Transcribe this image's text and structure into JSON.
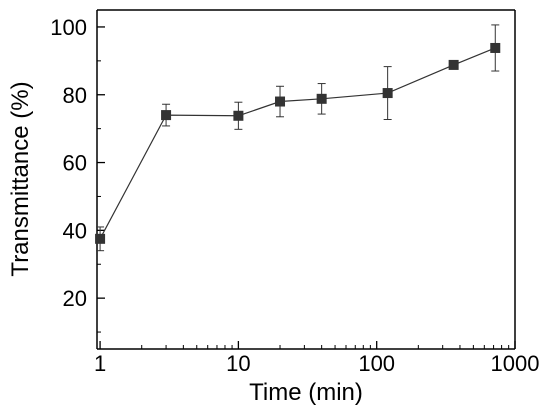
{
  "chart_data": {
    "type": "line",
    "xlabel": "Time (min)",
    "ylabel": "Transmittance (%)",
    "x_scale": "log",
    "xlim": [
      0.95,
      1000
    ],
    "ylim": [
      5,
      105
    ],
    "x_ticks": [
      1,
      10,
      100,
      1000
    ],
    "x_tick_labels": [
      "1",
      "10",
      "100",
      "1000"
    ],
    "y_ticks": [
      20,
      40,
      60,
      80,
      100
    ],
    "y_tick_labels": [
      "20",
      "40",
      "60",
      "80",
      "100"
    ],
    "grid": false,
    "legend": "none",
    "marker": "square",
    "color": "#333333",
    "series": [
      {
        "x": [
          1,
          3,
          10,
          20,
          40,
          120,
          360,
          720
        ],
        "y": [
          37.5,
          74,
          73.8,
          78,
          78.8,
          80.5,
          88.8,
          93.8
        ],
        "error": [
          3.5,
          3.2,
          4,
          4.5,
          4.5,
          7.8,
          1,
          6.8
        ]
      }
    ]
  }
}
